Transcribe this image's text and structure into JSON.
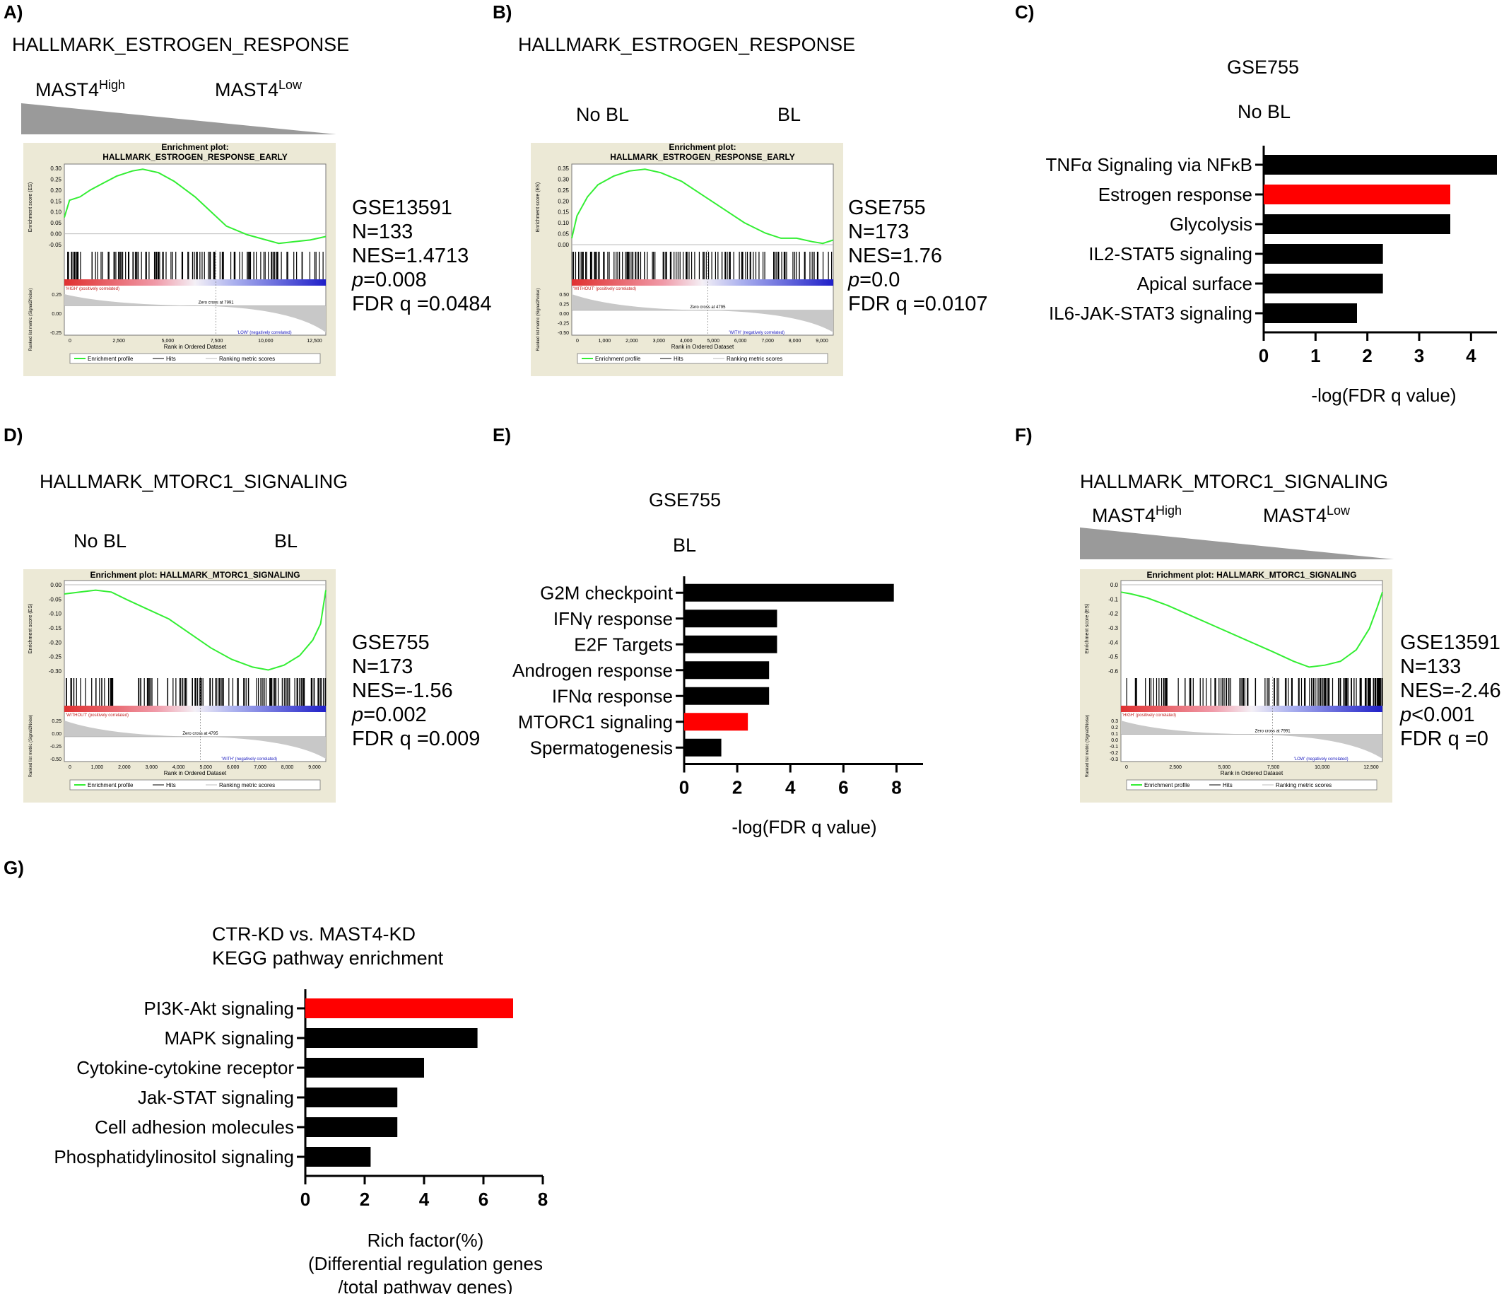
{
  "panels": {
    "A": {
      "letter": "A)",
      "title": "HALLMARK_ESTROGEN_RESPONSE",
      "left_label": "MAST4",
      "left_sup": "High",
      "right_label": "MAST4",
      "right_sup": "Low",
      "plot_title": "Enrichment plot:",
      "plot_subtitle": "HALLMARK_ESTROGEN_RESPONSE_EARLY",
      "es_ticks": [
        "0.30",
        "0.25",
        "0.20",
        "0.15",
        "0.10",
        "0.05",
        "0.00",
        "-0.05"
      ],
      "metric_ticks": [
        "0.25",
        "0.00",
        "-0.25"
      ],
      "rank_ticks": [
        "0",
        "2,500",
        "5,000",
        "7,500",
        "10,000",
        "12,500"
      ],
      "pos_label": "'HIGH' (positively correlated)",
      "neg_label": "'LOW' (negatively correlated)",
      "zero_cross": "Zero cross at 7991",
      "es_axis_label": "Enrichment score (ES)",
      "metric_axis_label": "Ranked list metric (Signal2Noise)",
      "rank_axis_label": "Rank in Ordered Dataset",
      "stats": {
        "dataset": "GSE13591",
        "n": "N=133",
        "nes": "NES=1.4713",
        "p_label": "p",
        "p_value": "=0.008",
        "fdr": "FDR q =0.0484"
      }
    },
    "B": {
      "letter": "B)",
      "title": "HALLMARK_ESTROGEN_RESPONSE",
      "left_label": "No BL",
      "right_label": "BL",
      "plot_title": "Enrichment plot:",
      "plot_subtitle": "HALLMARK_ESTROGEN_RESPONSE_EARLY",
      "es_ticks": [
        "0.35",
        "0.30",
        "0.25",
        "0.20",
        "0.15",
        "0.10",
        "0.05",
        "0.00"
      ],
      "metric_ticks": [
        "0.50",
        "0.25",
        "0.00",
        "-0.25",
        "-0.50"
      ],
      "rank_ticks": [
        "0",
        "1,000",
        "2,000",
        "3,000",
        "4,000",
        "5,000",
        "6,000",
        "7,000",
        "8,000",
        "9,000"
      ],
      "pos_label": "'WITHOUT' (positively correlated)",
      "neg_label": "'WITH' (negatively correlated)",
      "zero_cross": "Zero cross at 4795",
      "es_axis_label": "Enrichment score (ES)",
      "metric_axis_label": "Ranked list metric (Signal2Noise)",
      "rank_axis_label": "Rank in Ordered Dataset",
      "stats": {
        "dataset": "GSE755",
        "n": "N=173",
        "nes": "NES=1.76",
        "p_label": "p",
        "p_value": "=0.0",
        "fdr": "FDR q =0.0107"
      }
    },
    "C": {
      "letter": "C)",
      "dataset": "GSE755",
      "group": "No BL"
    },
    "D": {
      "letter": "D)",
      "title": "HALLMARK_MTORC1_SIGNALING",
      "left_label": "No BL",
      "right_label": "BL",
      "plot_title": "Enrichment plot: HALLMARK_MTORC1_SIGNALING",
      "es_ticks": [
        "0.00",
        "-0.05",
        "-0.10",
        "-0.15",
        "-0.20",
        "-0.25",
        "-0.30"
      ],
      "metric_ticks": [
        "0.25",
        "0.00",
        "-0.25",
        "-0.50"
      ],
      "rank_ticks": [
        "0",
        "1,000",
        "2,000",
        "3,000",
        "4,000",
        "5,000",
        "6,000",
        "7,000",
        "8,000",
        "9,000"
      ],
      "pos_label": "'WITHOUT' (positively correlated)",
      "neg_label": "'WITH' (negatively correlated)",
      "zero_cross": "Zero cross at 4795",
      "es_axis_label": "Enrichment score (ES)",
      "metric_axis_label": "Ranked list metric (Signal2Noise)",
      "rank_axis_label": "Rank in Ordered Dataset",
      "stats": {
        "dataset": "GSE755",
        "n": "N=173",
        "nes": "NES=-1.56",
        "p_label": "p",
        "p_value": "=0.002",
        "fdr": "FDR q =0.009"
      }
    },
    "E": {
      "letter": "E)",
      "dataset": "GSE755",
      "group": "BL"
    },
    "F": {
      "letter": "F)",
      "title": "HALLMARK_MTORC1_SIGNALING",
      "left_label": "MAST4",
      "left_sup": "High",
      "right_label": "MAST4",
      "right_sup": "Low",
      "plot_title": "Enrichment plot: HALLMARK_MTORC1_SIGNALING",
      "es_ticks": [
        "0.0",
        "-0.1",
        "-0.2",
        "-0.3",
        "-0.4",
        "-0.5",
        "-0.6"
      ],
      "metric_ticks": [
        "0.3",
        "0.2",
        "0.1",
        "0.0",
        "-0.1",
        "-0.2",
        "-0.3"
      ],
      "rank_ticks": [
        "0",
        "2,500",
        "5,000",
        "7,500",
        "10,000",
        "12,500"
      ],
      "pos_label": "'HIGH' (positively correlated)",
      "neg_label": "'LOW' (negatively correlated)",
      "zero_cross": "Zero cross at 7991",
      "es_axis_label": "Enrichment score (ES)",
      "metric_axis_label": "Ranked list metric (Signal2Noise)",
      "rank_axis_label": "Rank in Ordered Dataset",
      "stats": {
        "dataset": "GSE13591",
        "n": "N=133",
        "nes": "NES=-2.46",
        "p_label": "p",
        "p_value": "<0.001",
        "fdr": "FDR q =0"
      }
    },
    "G": {
      "letter": "G)",
      "title_line1": "CTR-KD vs. MAST4-KD",
      "title_line2": "KEGG pathway enrichment"
    }
  },
  "legend": {
    "profile": "Enrichment profile",
    "hits": "Hits",
    "ranking": "Ranking metric scores"
  },
  "colors": {
    "bar_default": "#000000",
    "bar_highlight": "#ff0000",
    "es_line": "#33ee33",
    "gsea_bg": "#ece9d6"
  },
  "chart_data": [
    {
      "id": "C",
      "type": "bar",
      "orientation": "horizontal",
      "categories": [
        "TNFα Signaling via NFκB",
        "Estrogen response",
        "Glycolysis",
        "IL2-STAT5 signaling",
        "Apical surface",
        "IL6-JAK-STAT3 signaling"
      ],
      "values": [
        4.5,
        3.6,
        3.6,
        2.3,
        2.3,
        1.8
      ],
      "highlight": [
        false,
        true,
        false,
        false,
        false,
        false
      ],
      "xticks": [
        "0",
        "1",
        "2",
        "3",
        "4"
      ],
      "xlim": [
        0,
        4.5
      ],
      "xlabel": "-log(FDR q value)",
      "ylabel": ""
    },
    {
      "id": "E",
      "type": "bar",
      "orientation": "horizontal",
      "categories": [
        "G2M checkpoint",
        "IFNγ response",
        "E2F Targets",
        "Androgen response",
        "IFNα response",
        "MTORC1 signaling",
        "Spermatogenesis"
      ],
      "values": [
        7.9,
        3.5,
        3.5,
        3.2,
        3.2,
        2.4,
        1.4
      ],
      "highlight": [
        false,
        false,
        false,
        false,
        false,
        true,
        false
      ],
      "xticks": [
        "0",
        "2",
        "4",
        "6",
        "8"
      ],
      "xlim": [
        0,
        9
      ],
      "xlabel": "-log(FDR q value)",
      "ylabel": ""
    },
    {
      "id": "G",
      "type": "bar",
      "orientation": "horizontal",
      "categories": [
        "PI3K-Akt signaling",
        "MAPK signaling",
        "Cytokine-cytokine receptor",
        "Jak-STAT signaling",
        "Cell adhesion molecules",
        "Phosphatidylinositol signaling"
      ],
      "values": [
        7.0,
        5.8,
        4.0,
        3.1,
        3.1,
        2.2
      ],
      "highlight": [
        true,
        false,
        false,
        false,
        false,
        false
      ],
      "xticks": [
        "0",
        "2",
        "4",
        "6",
        "8"
      ],
      "xlim": [
        0,
        8
      ],
      "xlabel_lines": [
        "Rich factor(%)",
        "(Differential regulation genes",
        "/total pathway genes)"
      ],
      "ylabel": ""
    }
  ]
}
